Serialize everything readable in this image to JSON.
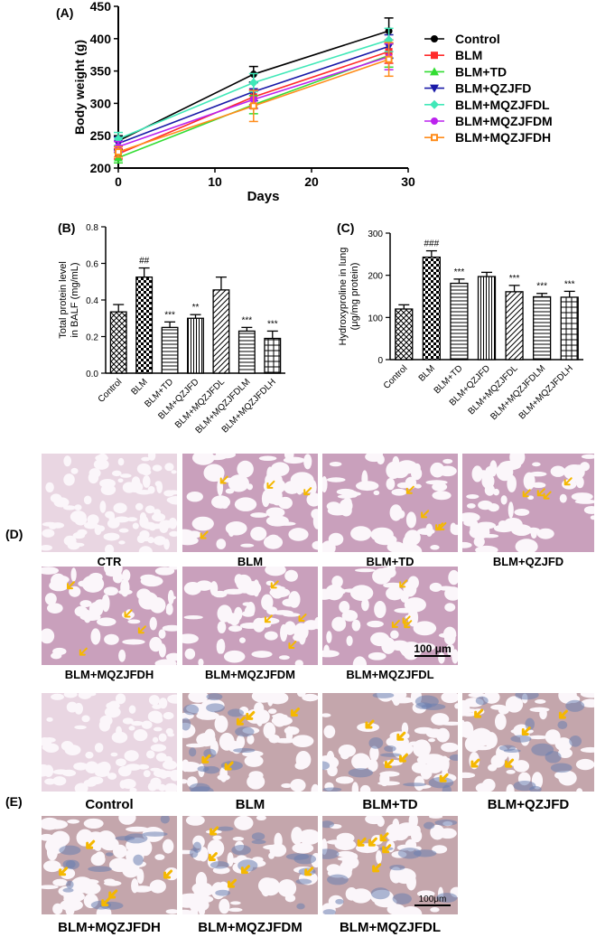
{
  "panels": {
    "a": "(A)",
    "b": "(B)",
    "c": "(C)",
    "d": "(D)",
    "e": "(E)"
  },
  "chart_data": [
    {
      "id": "A",
      "type": "line",
      "xlabel": "Days",
      "ylabel": "Body weight (g)",
      "xlim": [
        0,
        30
      ],
      "ylim": [
        200,
        450
      ],
      "xticks": [
        "0",
        "10",
        "20",
        "30"
      ],
      "yticks": [
        "200",
        "250",
        "300",
        "350",
        "400",
        "450"
      ],
      "x": [
        0,
        14,
        28
      ],
      "legend_position": "right",
      "series": [
        {
          "name": "Control",
          "color": "#000000",
          "marker": "circle",
          "values": [
            242,
            345,
            412
          ],
          "errors": [
            8,
            12,
            20
          ]
        },
        {
          "name": "BLM",
          "color": "#ff2a2a",
          "marker": "square",
          "values": [
            222,
            310,
            380
          ],
          "errors": [
            8,
            12,
            18
          ]
        },
        {
          "name": "BLM+TD",
          "color": "#33dd33",
          "marker": "triangle-up",
          "values": [
            216,
            298,
            374
          ],
          "errors": [
            8,
            14,
            18
          ]
        },
        {
          "name": "BLM+QZJFD",
          "color": "#1a1aa8",
          "marker": "triangle-down",
          "values": [
            238,
            318,
            388
          ],
          "errors": [
            10,
            14,
            18
          ]
        },
        {
          "name": "BLM+MQZJFDL",
          "color": "#40e8b8",
          "marker": "diamond",
          "values": [
            245,
            332,
            398
          ],
          "errors": [
            10,
            14,
            18
          ]
        },
        {
          "name": "BLM+MQZJFDM",
          "color": "#bb22ee",
          "marker": "circle",
          "values": [
            233,
            306,
            372
          ],
          "errors": [
            8,
            14,
            20
          ]
        },
        {
          "name": "BLM+MQZJFDH",
          "color": "#ff8c1a",
          "marker": "square-open",
          "values": [
            225,
            296,
            368
          ],
          "errors": [
            8,
            24,
            26
          ]
        }
      ]
    },
    {
      "id": "B",
      "type": "bar",
      "ylabel_lines": [
        "Total protein level",
        "in BALF (mg/mL)"
      ],
      "ylim": [
        0,
        0.8
      ],
      "yticks": [
        "0.0",
        "0.2",
        "0.4",
        "0.6",
        "0.8"
      ],
      "categories": [
        "Control",
        "BLM",
        "BLM+TD",
        "BLM+QZJFD",
        "BLM+MQZJFDL",
        "BLM+MQZJFDLM",
        "BLM+MQZJFDLH"
      ],
      "values": [
        0.335,
        0.525,
        0.25,
        0.3,
        0.455,
        0.23,
        0.19
      ],
      "errors": [
        0.04,
        0.05,
        0.03,
        0.02,
        0.07,
        0.02,
        0.04
      ],
      "annotations": [
        "",
        "##",
        "***",
        "**",
        "",
        "***",
        "***"
      ]
    },
    {
      "id": "C",
      "type": "bar",
      "ylabel_lines": [
        "Hydroxyproline in lung",
        "(μg/mg protein)"
      ],
      "ylim": [
        0,
        300
      ],
      "yticks": [
        "0",
        "100",
        "200",
        "300"
      ],
      "categories": [
        "Control",
        "BLM",
        "BLM+TD",
        "BLM+QZJFD",
        "BLM+MQZJFDL",
        "BLM+MQZJFDLM",
        "BLM+MQZJFDLH"
      ],
      "values": [
        120,
        243,
        181,
        197,
        161,
        149,
        148
      ],
      "errors": [
        10,
        15,
        10,
        10,
        15,
        8,
        14
      ],
      "annotations": [
        "",
        "###",
        "***",
        "",
        "***",
        "***",
        "***"
      ]
    }
  ],
  "histology_d": {
    "labels": [
      "CTR",
      "BLM",
      "BLM+TD",
      "BLM+QZJFD",
      "BLM+MQZJFDH",
      "BLM+MQZJFDM",
      "BLM+MQZJFDL"
    ],
    "scale_bar": "100 μm"
  },
  "histology_e": {
    "labels": [
      "Control",
      "BLM",
      "BLM+TD",
      "BLM+QZJFD",
      "BLM+MQZJFDH",
      "BLM+MQZJFDM",
      "BLM+MQZJFDL"
    ],
    "scale_bar": "100μm"
  },
  "colors": {
    "he_stain": "#c9a0bc",
    "masson_stain": "#c4a6ac",
    "collagen": "#6b7fb0",
    "arrow": "#f5b800"
  }
}
